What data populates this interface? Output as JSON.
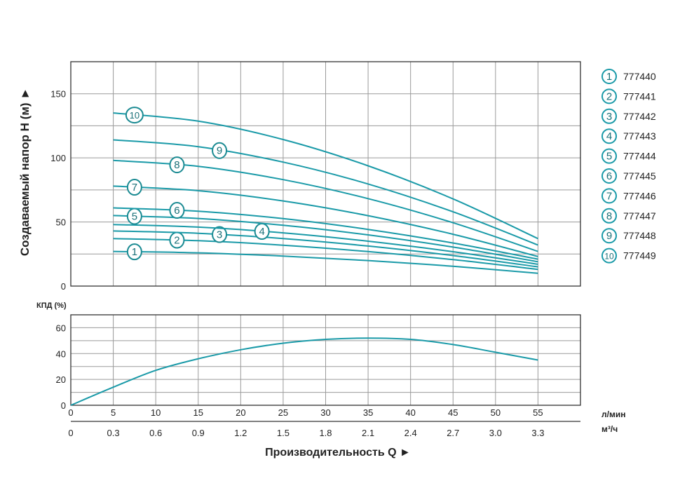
{
  "colors": {
    "curve": "#1a9aa8",
    "grid": "#9a9a9a",
    "frame": "#333333",
    "text": "#222222"
  },
  "chart_data": [
    {
      "type": "line",
      "title": "",
      "ylabel": "Создаваемый напор H (м) ►",
      "xlabel": "Производительность Q ►",
      "xlim": [
        0,
        60
      ],
      "ylim": [
        0,
        175
      ],
      "grid": true,
      "yticks": [
        0,
        50,
        100,
        150
      ],
      "x": [
        5,
        15,
        25,
        35,
        45,
        55
      ],
      "series": [
        {
          "name": "1",
          "label": "777440",
          "values": [
            27,
            25.9,
            23.4,
            19.9,
            15.4,
            10
          ],
          "label_x": 7.5
        },
        {
          "name": "2",
          "label": "777441",
          "values": [
            37,
            35.4,
            31.9,
            26.9,
            20.6,
            13
          ],
          "label_x": 12.5
        },
        {
          "name": "3",
          "label": "777442",
          "values": [
            43,
            41.2,
            37.1,
            31.2,
            23.8,
            15
          ],
          "label_x": 17.5
        },
        {
          "name": "4",
          "label": "777443",
          "values": [
            48,
            46,
            41.5,
            35,
            26.8,
            17
          ],
          "label_x": 22.5
        },
        {
          "name": "5",
          "label": "777444",
          "values": [
            55,
            52.7,
            47.4,
            39.9,
            30.4,
            19
          ],
          "label_x": 7.5
        },
        {
          "name": "6",
          "label": "777445",
          "values": [
            61,
            58.4,
            52.6,
            44.2,
            33.6,
            21
          ],
          "label_x": 12.5
        },
        {
          "name": "7",
          "label": "777446",
          "values": [
            78,
            74.4,
            66.4,
            54.9,
            40.4,
            23
          ],
          "label_x": 7.5
        },
        {
          "name": "8",
          "label": "777447",
          "values": [
            98,
            93.4,
            83,
            68.2,
            49.4,
            27
          ],
          "label_x": 12.5
        },
        {
          "name": "9",
          "label": "777448",
          "values": [
            114,
            108.7,
            96.7,
            79.6,
            57.9,
            32
          ],
          "label_x": 17.5
        },
        {
          "name": "10",
          "label": "777449",
          "values": [
            135,
            128.6,
            114.3,
            93.8,
            68,
            37
          ],
          "label_x": 7.5
        }
      ],
      "legend": "right"
    },
    {
      "type": "line",
      "ylabel": "КПД (%)",
      "xlim": [
        0,
        60
      ],
      "ylim": [
        0,
        70
      ],
      "grid": true,
      "yticks": [
        0,
        20,
        40,
        60
      ],
      "x": [
        0,
        5,
        10,
        15,
        20,
        25,
        30,
        35,
        40,
        45,
        50,
        55
      ],
      "series": [
        {
          "name": "КПД",
          "values": [
            0,
            14,
            27,
            36,
            43,
            48,
            51,
            52,
            51,
            47,
            41,
            35
          ]
        }
      ]
    }
  ],
  "x_axis_lmin": {
    "unit": "л/мин",
    "ticks": [
      "0",
      "5",
      "10",
      "15",
      "20",
      "25",
      "30",
      "35",
      "40",
      "45",
      "50",
      "55"
    ]
  },
  "x_axis_m3h": {
    "unit": "м³/ч",
    "ticks": [
      "0",
      "0.3",
      "0.6",
      "0.9",
      "1.2",
      "1.5",
      "1.8",
      "2.1",
      "2.4",
      "2.7",
      "3.0",
      "3.3"
    ]
  }
}
